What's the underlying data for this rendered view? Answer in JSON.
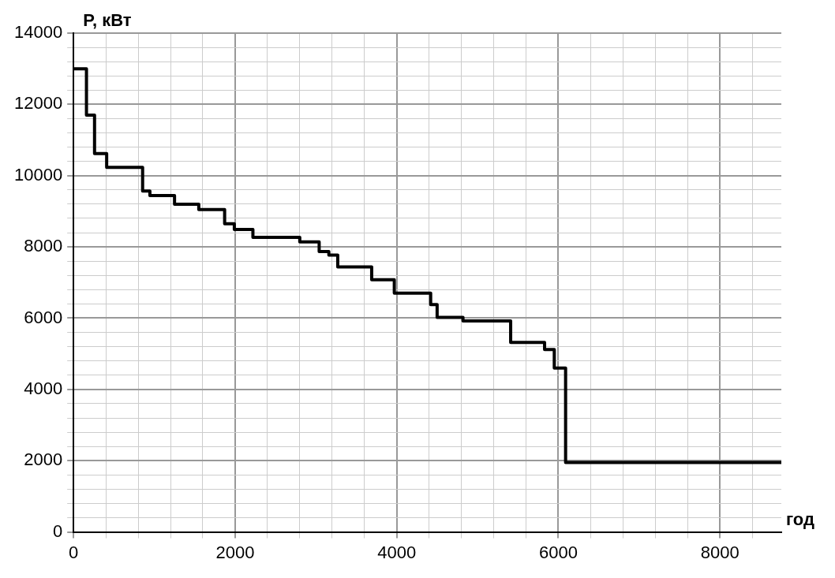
{
  "chart_data": {
    "type": "step",
    "xlabel": "год",
    "ylabel": "P, кВт",
    "x": [
      0,
      160,
      260,
      410,
      855,
      945,
      1250,
      1550,
      1870,
      1990,
      2220,
      2800,
      3040,
      3160,
      3270,
      3690,
      3970,
      4420,
      4500,
      4820,
      5410,
      5830,
      5950,
      6090,
      8760
    ],
    "series": [
      {
        "color": "#000000",
        "values": [
          13000,
          11700,
          10620,
          10230,
          9570,
          9440,
          9200,
          9050,
          8650,
          8490,
          8270,
          8140,
          7870,
          7770,
          7440,
          7080,
          6700,
          6380,
          6020,
          5920,
          5320,
          5120,
          4600,
          1950,
          1950
        ]
      }
    ],
    "xlim": [
      0,
      8760
    ],
    "xticks": [
      0,
      {
        "value": 400,
        "label": null
      },
      {
        "value": 800,
        "label": null
      },
      {
        "value": 1200,
        "label": null
      },
      {
        "value": 1600,
        "label": null
      },
      2000,
      {
        "value": 2400,
        "label": null
      },
      {
        "value": 2800,
        "label": null
      },
      {
        "value": 3200,
        "label": null
      },
      {
        "value": 3600,
        "label": null
      },
      4000,
      {
        "value": 4400,
        "label": null
      },
      {
        "value": 4800,
        "label": null
      },
      {
        "value": 5200,
        "label": null
      },
      {
        "value": 5600,
        "label": null
      },
      6000,
      {
        "value": 6400,
        "label": null
      },
      {
        "value": 6800,
        "label": null
      },
      {
        "value": 7200,
        "label": null
      },
      {
        "value": 7600,
        "label": null
      },
      8000,
      {
        "value": 8400,
        "label": null
      }
    ],
    "ylim": [
      0,
      14000
    ],
    "yticks": [
      0,
      {
        "value": 400,
        "label": null
      },
      {
        "value": 800,
        "label": null
      },
      {
        "value": 1200,
        "label": null
      },
      {
        "value": 1600,
        "label": null
      },
      2000,
      {
        "value": 2400,
        "label": null
      },
      {
        "value": 2800,
        "label": null
      },
      {
        "value": 3200,
        "label": null
      },
      {
        "value": 3600,
        "label": null
      },
      4000,
      {
        "value": 4400,
        "label": null
      },
      {
        "value": 4800,
        "label": null
      },
      {
        "value": 5200,
        "label": null
      },
      {
        "value": 5600,
        "label": null
      },
      6000,
      {
        "value": 6400,
        "label": null
      },
      {
        "value": 6800,
        "label": null
      },
      {
        "value": 7200,
        "label": null
      },
      {
        "value": 7600,
        "label": null
      },
      8000,
      {
        "value": 8400,
        "label": null
      },
      {
        "value": 8800,
        "label": null
      },
      {
        "value": 9200,
        "label": null
      },
      {
        "value": 9600,
        "label": null
      },
      10000,
      {
        "value": 10400,
        "label": null
      },
      {
        "value": 10800,
        "label": null
      },
      {
        "value": 11200,
        "label": null
      },
      {
        "value": 11600,
        "label": null
      },
      12000,
      {
        "value": 12400,
        "label": null
      },
      {
        "value": 12800,
        "label": null
      },
      {
        "value": 13200,
        "label": null
      },
      {
        "value": 13600,
        "label": null
      },
      14000
    ],
    "grid": true,
    "legend": false,
    "marker": "none",
    "line_style": "solid"
  }
}
